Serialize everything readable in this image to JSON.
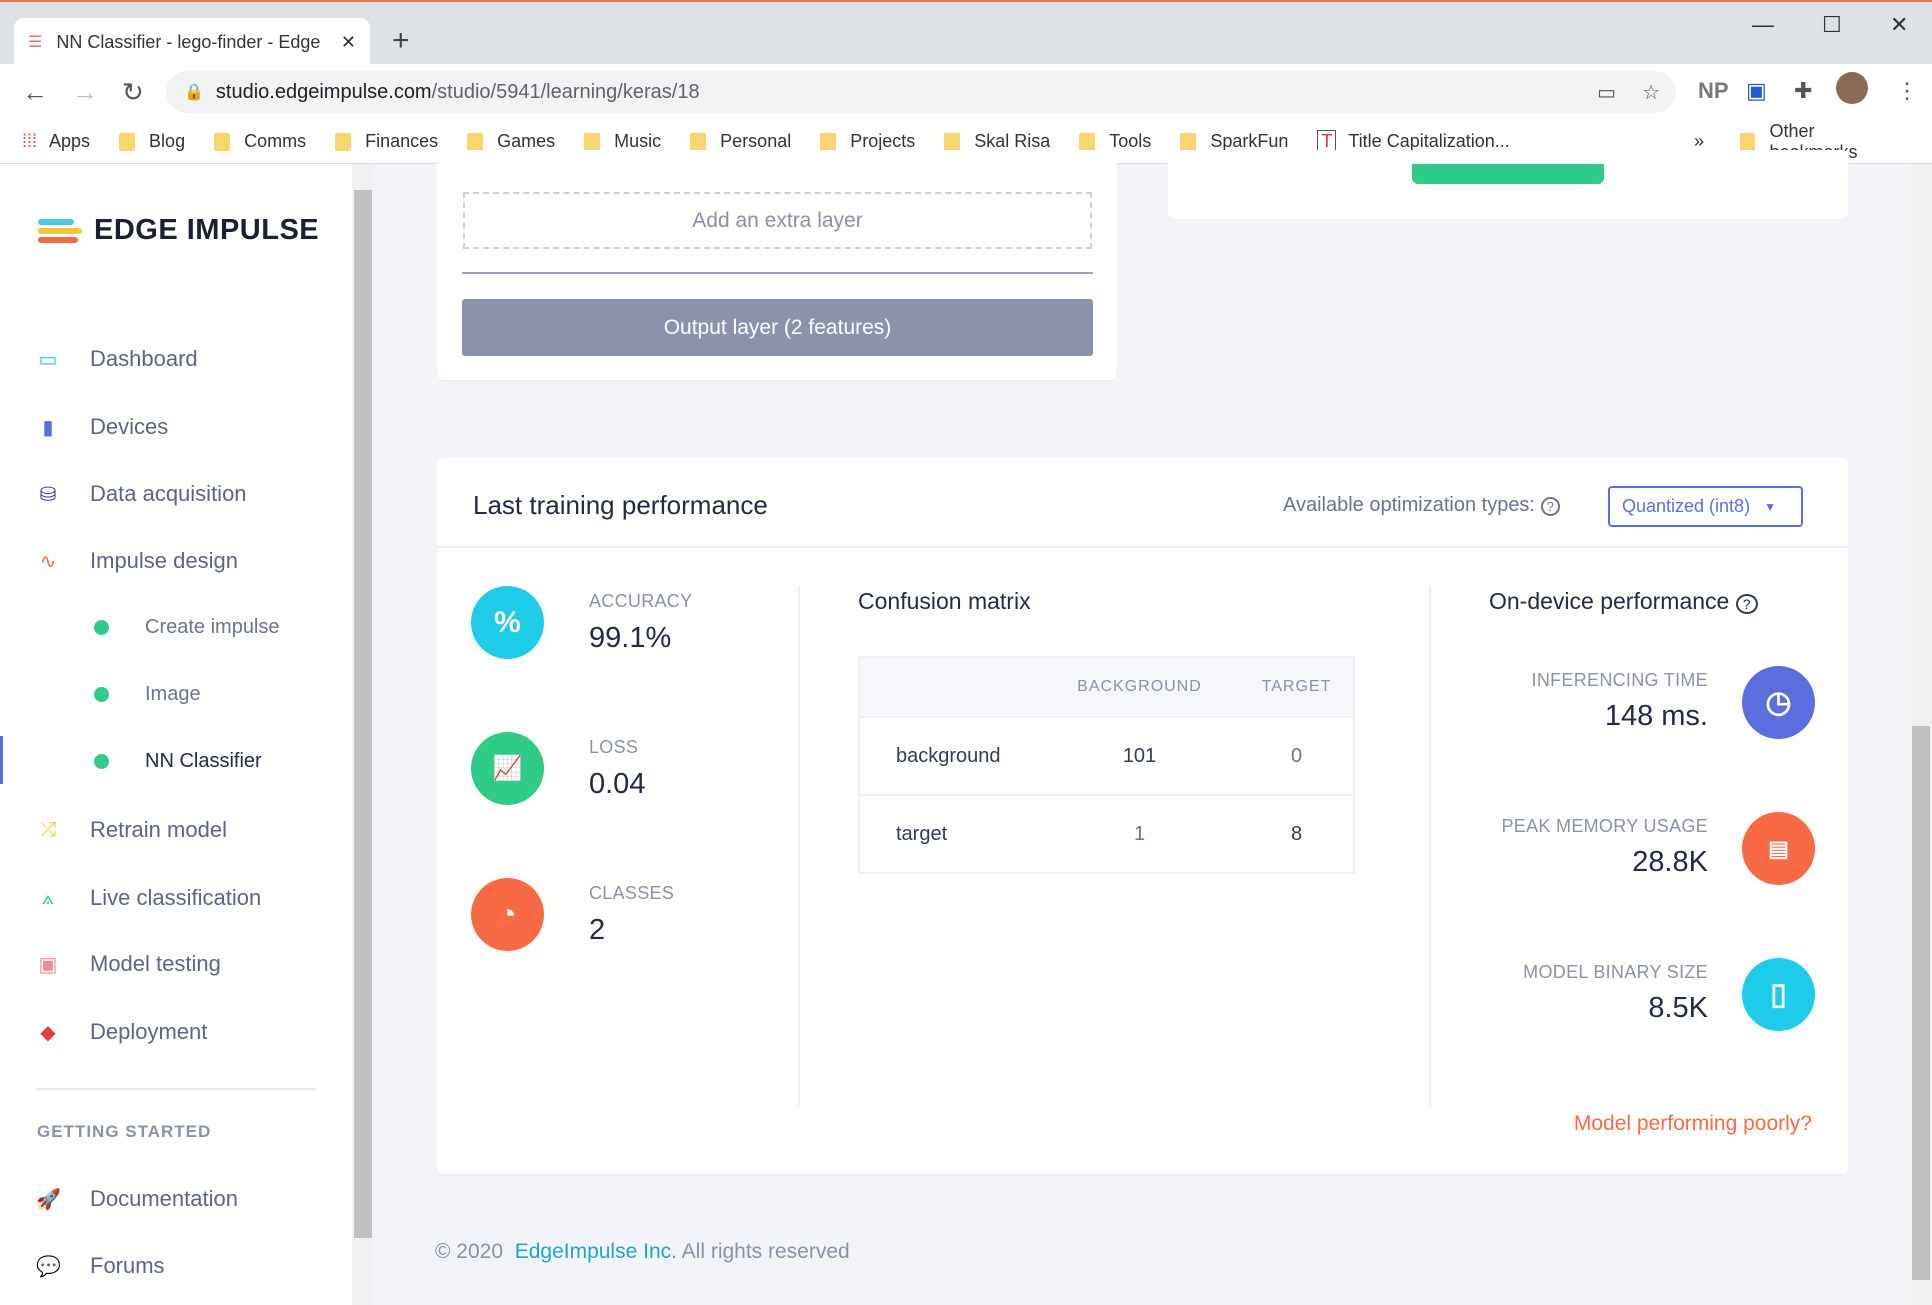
{
  "browser": {
    "tab_title": "NN Classifier - lego-finder - Edge",
    "new_tab": "+",
    "url_host": "studio.edgeimpulse.com",
    "url_path": "/studio/5941/learning/keras/18",
    "profile_initials": "NP",
    "bookmarks": [
      "Apps",
      "Blog",
      "Comms",
      "Finances",
      "Games",
      "Music",
      "Personal",
      "Projects",
      "Skal Risa",
      "Tools",
      "SparkFun",
      "Title Capitalization..."
    ],
    "overflow": "»",
    "other_bookmarks": "Other bookmarks"
  },
  "sidebar": {
    "brand": "EDGE IMPULSE",
    "items": [
      {
        "label": "Dashboard",
        "icon": "monitor-icon"
      },
      {
        "label": "Devices",
        "icon": "chip-icon"
      },
      {
        "label": "Data acquisition",
        "icon": "database-icon"
      },
      {
        "label": "Impulse design",
        "icon": "pulse-icon"
      }
    ],
    "subitems": [
      "Create impulse",
      "Image",
      "NN Classifier"
    ],
    "items2": [
      {
        "label": "Retrain model",
        "icon": "shuffle-icon"
      },
      {
        "label": "Live classification",
        "icon": "graph-icon"
      },
      {
        "label": "Model testing",
        "icon": "clipboard-icon"
      },
      {
        "label": "Deployment",
        "icon": "box-icon"
      }
    ],
    "section": "GETTING STARTED",
    "help": [
      {
        "label": "Documentation",
        "icon": "rocket-icon"
      },
      {
        "label": "Forums",
        "icon": "chat-icon"
      }
    ]
  },
  "layers": {
    "add": "Add an extra layer",
    "output": "Output layer (2 features)"
  },
  "perf": {
    "title": "Last training performance",
    "opt_label": "Available optimization types:",
    "opt_value": "Quantized (int8)",
    "accuracy_label": "ACCURACY",
    "accuracy": "99.1%",
    "loss_label": "LOSS",
    "loss": "0.04",
    "classes_label": "CLASSES",
    "classes": "2",
    "cm_title": "Confusion matrix",
    "cm_cols": [
      "BACKGROUND",
      "TARGET"
    ],
    "cm_rows": [
      {
        "label": "background",
        "values": [
          "101",
          "0"
        ]
      },
      {
        "label": "target",
        "values": [
          "1",
          "8"
        ]
      }
    ],
    "device_title": "On-device performance",
    "inf_label": "INFERENCING TIME",
    "inf": "148 ms.",
    "mem_label": "PEAK MEMORY USAGE",
    "mem": "28.8K",
    "bin_label": "MODEL BINARY SIZE",
    "bin": "8.5K",
    "poor": "Model performing poorly?"
  },
  "footer": {
    "copy": "© 2020",
    "company": "EdgeImpulse Inc.",
    "rights": "All rights reserved"
  },
  "colors": {
    "accent": "#5a6ee0",
    "green": "#2ecc87",
    "orange": "#f86a43",
    "cyan": "#1ecbe8",
    "link": "#1fa6c4"
  }
}
